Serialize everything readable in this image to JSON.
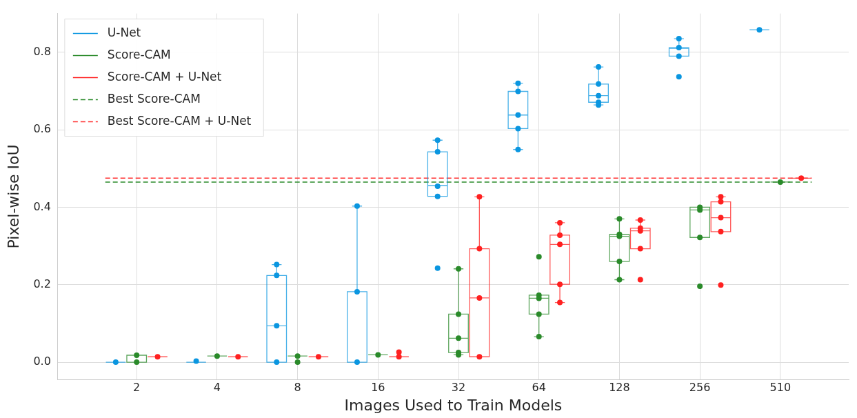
{
  "chart_data": {
    "type": "box",
    "xlabel": "Images Used to Train Models",
    "ylabel": "Pixel-wise IoU",
    "categories": [
      "2",
      "4",
      "8",
      "16",
      "32",
      "64",
      "128",
      "256",
      "510"
    ],
    "ylim": [
      -0.045,
      0.9
    ],
    "yticks": [
      {
        "value": 0,
        "label": "0.0"
      },
      {
        "value": 0.2,
        "label": "0.2"
      },
      {
        "value": 0.4,
        "label": "0.4"
      },
      {
        "value": 0.6,
        "label": "0.6"
      },
      {
        "value": 0.8,
        "label": "0.8"
      }
    ],
    "grid": true,
    "legend": "top left",
    "marker": "circle",
    "series": [
      {
        "name": "U-Net",
        "color": "#0a96e0",
        "boxes": [
          {
            "low": 0,
            "q1": 0,
            "median": 0,
            "q3": 0,
            "high": 0
          },
          {
            "low": 0,
            "q1": 0,
            "median": 0,
            "q3": 0,
            "high": 0
          },
          {
            "low": 0,
            "q1": 0,
            "median": 0.094,
            "q3": 0.224,
            "high": 0.252
          },
          {
            "low": 0,
            "q1": 0,
            "median": 0,
            "q3": 0.182,
            "high": 0.403
          },
          {
            "low": 0.428,
            "q1": 0.428,
            "median": 0.456,
            "q3": 0.543,
            "high": 0.573
          },
          {
            "low": 0.549,
            "q1": 0.603,
            "median": 0.638,
            "q3": 0.699,
            "high": 0.72
          },
          {
            "low": 0.664,
            "q1": 0.671,
            "median": 0.688,
            "q3": 0.718,
            "high": 0.762
          },
          {
            "low": 0.79,
            "q1": 0.79,
            "median": 0.81,
            "q3": 0.812,
            "high": 0.835
          },
          {
            "low": 0.858,
            "q1": 0.858,
            "median": 0.858,
            "q3": 0.858,
            "high": 0.858
          }
        ]
      },
      {
        "type": "scatter",
        "color": "#0a96e0",
        "x": [
          "2",
          "4",
          "8",
          "8",
          "8",
          "8",
          "16",
          "16",
          "16",
          "32",
          "32",
          "32",
          "32",
          "32",
          "64",
          "64",
          "64",
          "64",
          "64",
          "128",
          "128",
          "128",
          "128",
          "128",
          "256",
          "256",
          "256",
          "256",
          "510"
        ],
        "values": [
          0,
          0.003,
          0,
          0.094,
          0.224,
          0.252,
          0,
          0.182,
          0.403,
          0.573,
          0.543,
          0.454,
          0.428,
          0.243,
          0.72,
          0.699,
          0.638,
          0.603,
          0.549,
          0.762,
          0.718,
          0.688,
          0.671,
          0.664,
          0.835,
          0.812,
          0.79,
          0.737,
          0.858
        ]
      },
      {
        "name": "Score-CAM",
        "color": "#2a8a2a",
        "boxes": [
          {
            "low": 0,
            "q1": 0,
            "median": 0.018,
            "q3": 0.018,
            "high": 0.018
          },
          {
            "low": 0.016,
            "q1": 0.016,
            "median": 0.016,
            "q3": 0.016,
            "high": 0.016
          },
          {
            "low": 0.016,
            "q1": 0.016,
            "median": 0.016,
            "q3": 0.016,
            "high": 0.016
          },
          {
            "low": 0.019,
            "q1": 0.019,
            "median": 0.019,
            "q3": 0.019,
            "high": 0.019
          },
          {
            "low": 0.019,
            "q1": 0.025,
            "median": 0.062,
            "q3": 0.124,
            "high": 0.241
          },
          {
            "low": 0.066,
            "q1": 0.124,
            "median": 0.165,
            "q3": 0.173,
            "high": 0.173
          },
          {
            "low": 0.213,
            "q1": 0.26,
            "median": 0.325,
            "q3": 0.33,
            "high": 0.37
          },
          {
            "low": 0.322,
            "q1": 0.322,
            "median": 0.393,
            "q3": 0.4,
            "high": 0.4
          },
          {
            "low": 0.465,
            "q1": 0.465,
            "median": 0.465,
            "q3": 0.465,
            "high": 0.465
          }
        ]
      },
      {
        "type": "scatter",
        "color": "#2a8a2a",
        "x": [
          "2",
          "2",
          "4",
          "8",
          "8",
          "16",
          "32",
          "32",
          "32",
          "32",
          "32",
          "64",
          "64",
          "64",
          "64",
          "64",
          "128",
          "128",
          "128",
          "128",
          "128",
          "256",
          "256",
          "256",
          "256",
          "510"
        ],
        "values": [
          0.018,
          0,
          0.016,
          0.016,
          0,
          0.019,
          0.241,
          0.124,
          0.062,
          0.025,
          0.019,
          0.272,
          0.173,
          0.165,
          0.124,
          0.066,
          0.37,
          0.33,
          0.325,
          0.26,
          0.213,
          0.4,
          0.393,
          0.322,
          0.196,
          0.465
        ]
      },
      {
        "name": "Score-CAM + U-Net",
        "color": "#ff2020",
        "boxes": [
          {
            "low": 0.014,
            "q1": 0.014,
            "median": 0.014,
            "q3": 0.014,
            "high": 0.014
          },
          {
            "low": 0.014,
            "q1": 0.014,
            "median": 0.014,
            "q3": 0.014,
            "high": 0.014
          },
          {
            "low": 0.014,
            "q1": 0.014,
            "median": 0.014,
            "q3": 0.014,
            "high": 0.014
          },
          {
            "low": 0.014,
            "q1": 0.014,
            "median": 0.014,
            "q3": 0.014,
            "high": 0.014
          },
          {
            "low": 0.014,
            "q1": 0.014,
            "median": 0.166,
            "q3": 0.293,
            "high": 0.427
          },
          {
            "low": 0.154,
            "q1": 0.201,
            "median": 0.304,
            "q3": 0.328,
            "high": 0.36
          },
          {
            "low": 0.293,
            "q1": 0.293,
            "median": 0.339,
            "q3": 0.346,
            "high": 0.367
          },
          {
            "low": 0.337,
            "q1": 0.337,
            "median": 0.373,
            "q3": 0.414,
            "high": 0.427
          },
          {
            "low": 0.475,
            "q1": 0.475,
            "median": 0.475,
            "q3": 0.475,
            "high": 0.475
          }
        ]
      },
      {
        "type": "scatter",
        "color": "#ff2020",
        "x": [
          "2",
          "4",
          "8",
          "16",
          "16",
          "32",
          "32",
          "32",
          "32",
          "64",
          "64",
          "64",
          "64",
          "64",
          "128",
          "128",
          "128",
          "128",
          "128",
          "256",
          "256",
          "256",
          "256",
          "256",
          "510"
        ],
        "values": [
          0.014,
          0.014,
          0.014,
          0.014,
          0.026,
          0.427,
          0.293,
          0.166,
          0.014,
          0.36,
          0.328,
          0.304,
          0.201,
          0.154,
          0.367,
          0.346,
          0.339,
          0.293,
          0.213,
          0.427,
          0.414,
          0.373,
          0.337,
          0.199,
          0.475
        ]
      }
    ],
    "ref_lines": [
      {
        "axis": "y",
        "value": 0.465,
        "label": "Best Score-CAM",
        "color": "#2a8a2a",
        "line_style": "dashed"
      },
      {
        "axis": "y",
        "value": 0.475,
        "label": "Best Score-CAM + U-Net",
        "color": "#ff3030",
        "line_style": "dashed"
      }
    ]
  }
}
